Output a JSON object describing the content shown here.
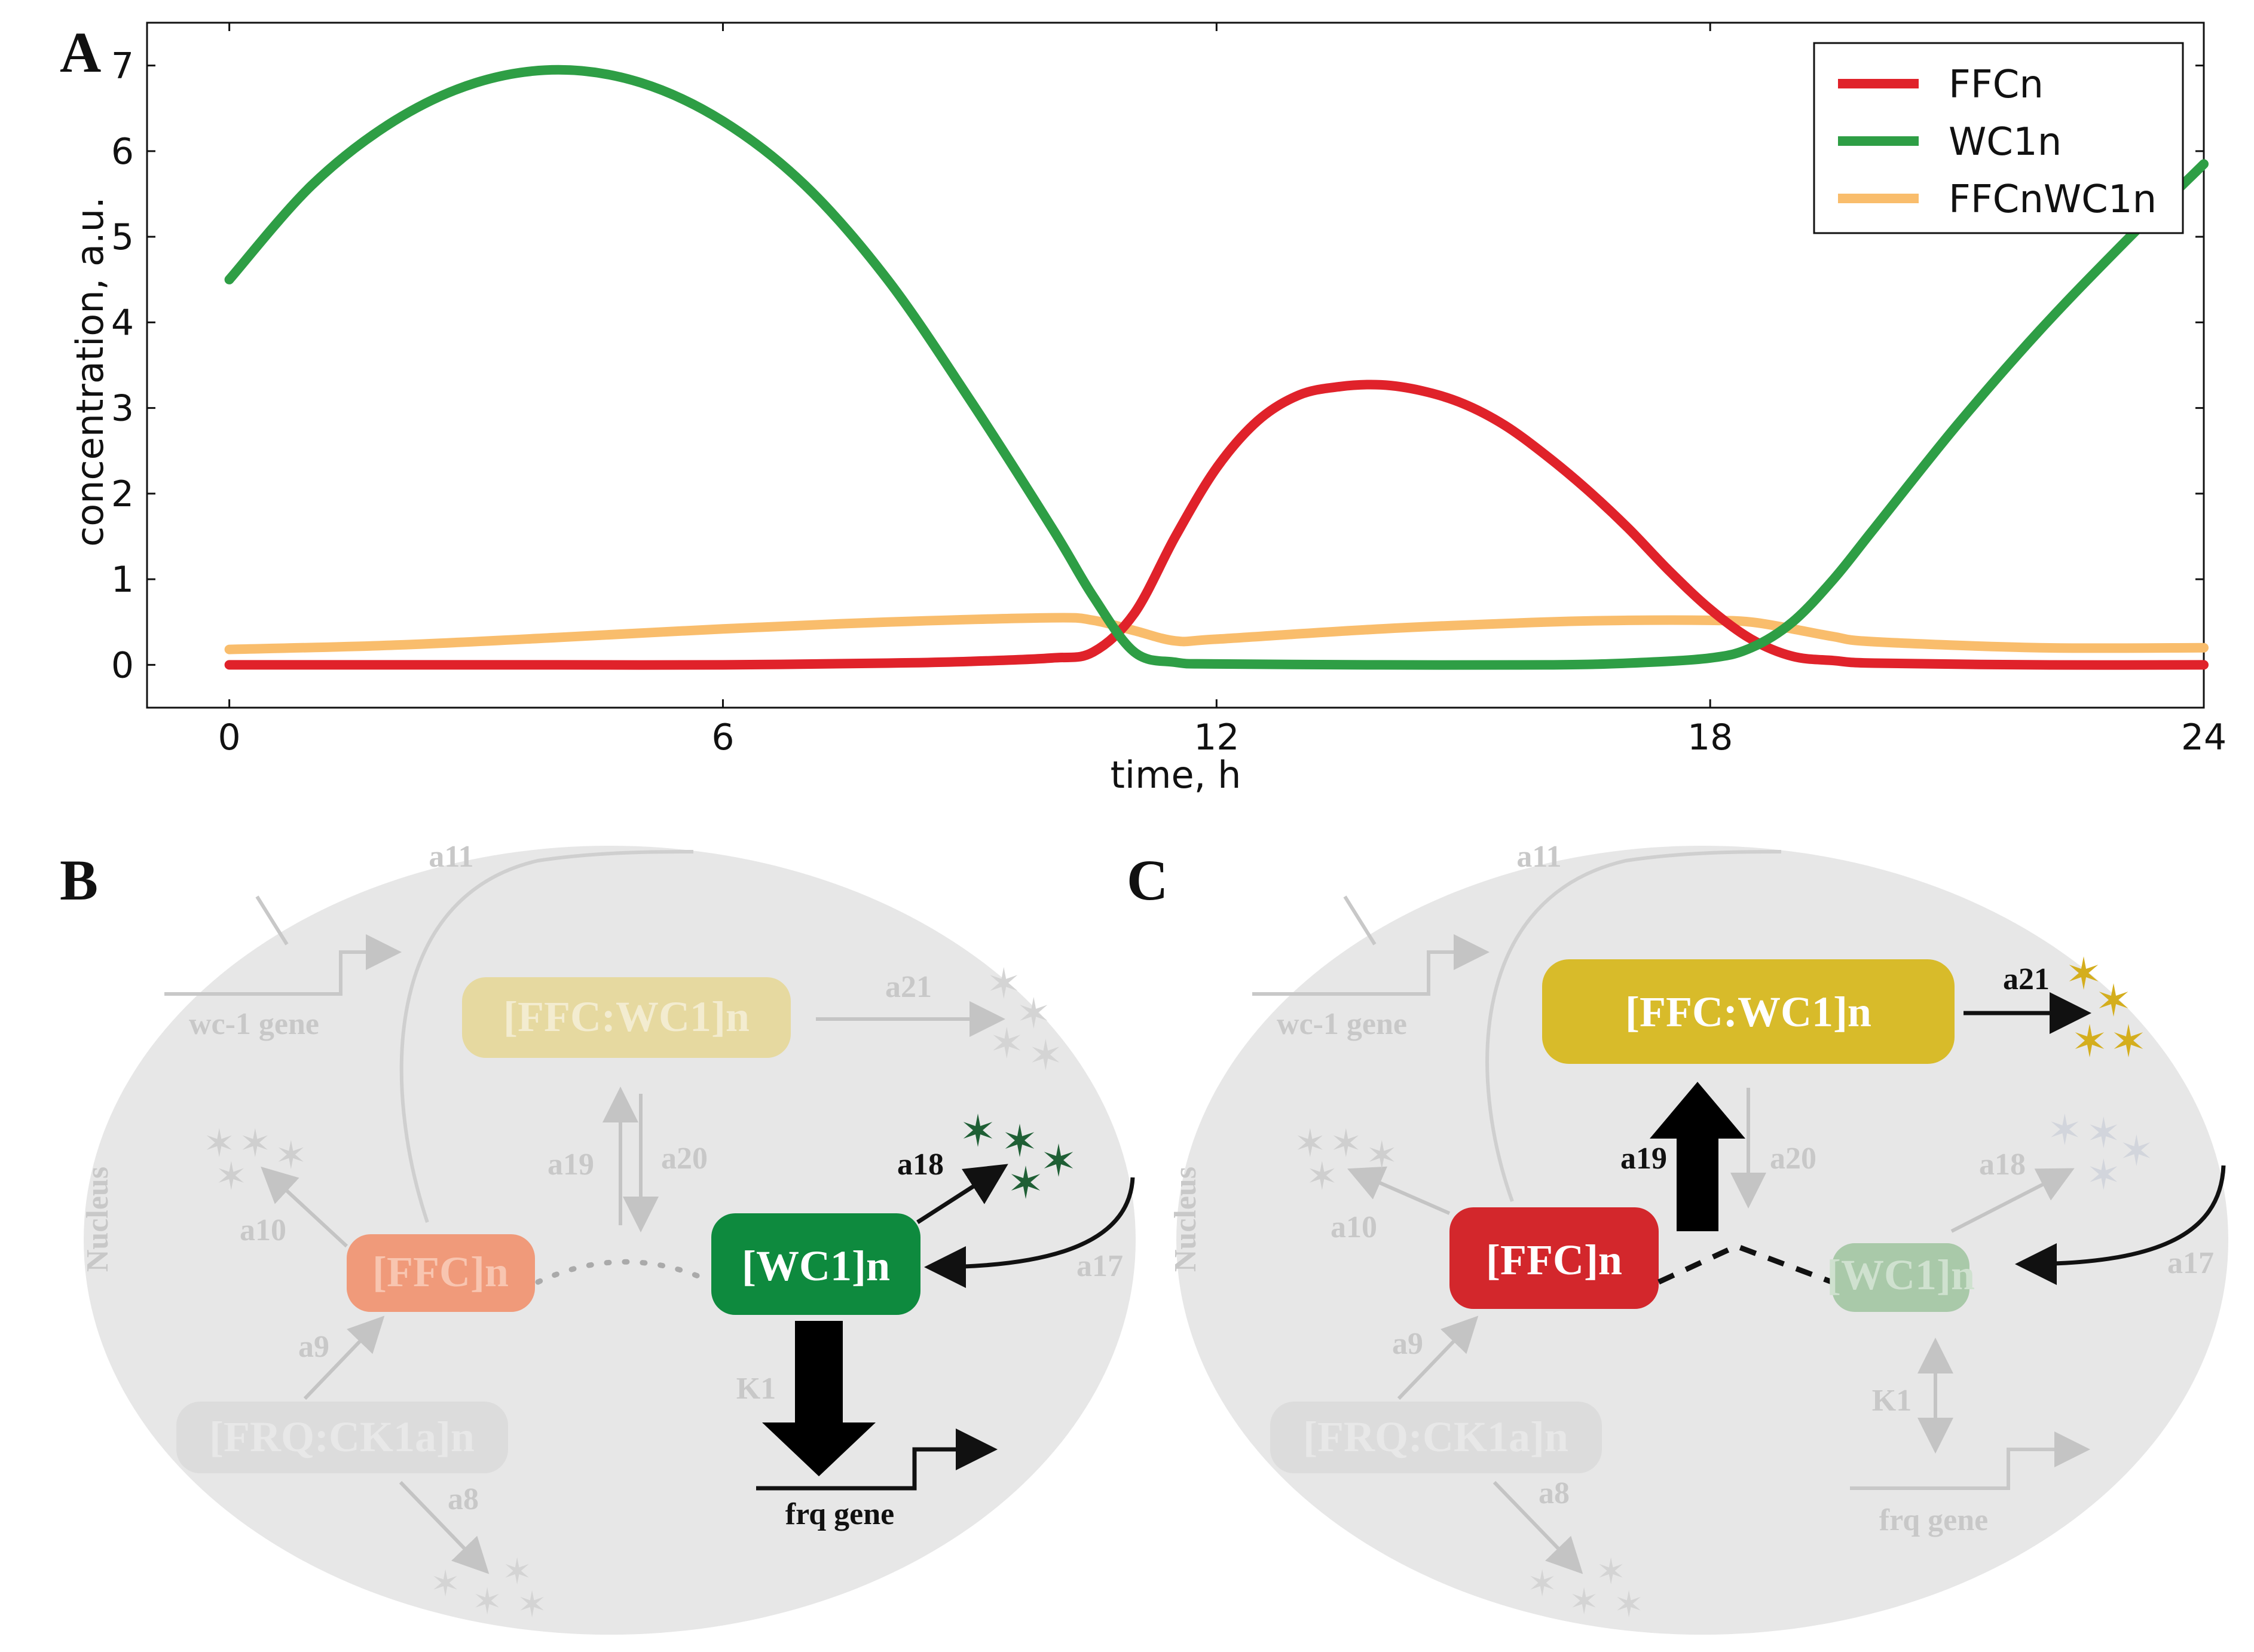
{
  "panel_labels": {
    "a": "A",
    "b": "B",
    "c": "C"
  },
  "chart_data": {
    "type": "line",
    "xlabel": "time, h",
    "ylabel": "concentration, a.u.",
    "xlim": [
      -1.0,
      24.0
    ],
    "ylim": [
      -0.5,
      7.5
    ],
    "xticks": [
      0,
      6,
      12,
      18,
      24
    ],
    "yticks": [
      0,
      1,
      2,
      3,
      4,
      5,
      6,
      7
    ],
    "legend_position": "top-right",
    "grid": false,
    "series": [
      {
        "name": "FFCn",
        "color": "#e0222a",
        "x": [
          0,
          2,
          4,
          6,
          8,
          9,
          10,
          10.5,
          11,
          11.5,
          12,
          12.5,
          13,
          13.5,
          14,
          14.5,
          15,
          15.5,
          16,
          16.5,
          17,
          17.5,
          18,
          18.5,
          19,
          19.5,
          20,
          22,
          24
        ],
        "y": [
          0.0,
          0.0,
          0.0,
          0.0,
          0.02,
          0.04,
          0.08,
          0.15,
          0.6,
          1.5,
          2.3,
          2.85,
          3.15,
          3.25,
          3.27,
          3.2,
          3.05,
          2.8,
          2.45,
          2.05,
          1.6,
          1.1,
          0.65,
          0.3,
          0.1,
          0.05,
          0.02,
          0.0,
          0.0
        ]
      },
      {
        "name": "WC1n",
        "color": "#2e9e45",
        "x": [
          0,
          1,
          2,
          3,
          4,
          5,
          6,
          7,
          8,
          9,
          10,
          10.5,
          11,
          11.5,
          12,
          14,
          16,
          17,
          18,
          18.5,
          19,
          19.5,
          20,
          21,
          22,
          23,
          24
        ],
        "y": [
          4.5,
          5.6,
          6.35,
          6.8,
          6.95,
          6.8,
          6.35,
          5.6,
          4.5,
          3.1,
          1.6,
          0.8,
          0.15,
          0.03,
          0.01,
          0.0,
          0.0,
          0.02,
          0.08,
          0.2,
          0.5,
          1.0,
          1.6,
          2.8,
          3.9,
          4.9,
          5.85
        ]
      },
      {
        "name": "FFCnWC1n",
        "color": "#f9bd6c",
        "x": [
          0,
          2,
          4,
          6,
          8,
          10,
          10.5,
          11,
          11.5,
          12,
          14,
          16,
          17,
          18,
          18.5,
          19,
          19.5,
          20,
          22,
          24
        ],
        "y": [
          0.18,
          0.23,
          0.32,
          0.42,
          0.5,
          0.55,
          0.52,
          0.4,
          0.28,
          0.3,
          0.42,
          0.5,
          0.52,
          0.52,
          0.5,
          0.42,
          0.33,
          0.27,
          0.2,
          0.2
        ]
      }
    ]
  },
  "panel_b": {
    "nucleus_label": "Nucleus",
    "wc1_gene": "wc-1 gene",
    "frq_gene": "frq gene",
    "ffc_wc1_complex": "[FFC:WC1]n",
    "ffc": "[FFC]n",
    "wc1": "[WC1]n",
    "frq_ck1a": "[FRQ:CK1a]n",
    "a8": "a8",
    "a9": "a9",
    "a10": "a10",
    "a11": "a11",
    "a17": "a17",
    "a18": "a18",
    "a19": "a19",
    "a20": "a20",
    "a21": "a21",
    "k1": "K1",
    "colors": {
      "wc1_box": "#0e8a3e",
      "ffc_box": "#f09a7a",
      "complex_box": "#e6d9a0",
      "frq_gene_text": "#6a2a8a"
    }
  },
  "panel_c": {
    "nucleus_label": "Nucleus",
    "wc1_gene": "wc-1 gene",
    "frq_gene": "frq gene",
    "ffc_wc1_complex": "[FFC:WC1]n",
    "ffc": "[FFC]n",
    "wc1": "[WC1]n",
    "frq_ck1a": "[FRQ:CK1a]n",
    "a8": "a8",
    "a9": "a9",
    "a10": "a10",
    "a11": "a11",
    "a17": "a17",
    "a18": "a18",
    "a19": "a19",
    "a20": "a20",
    "a21": "a21",
    "k1": "K1",
    "colors": {
      "complex_box": "#d8bb2a",
      "ffc_box": "#d3272c",
      "wc1_box": "#a9c9a9"
    }
  }
}
